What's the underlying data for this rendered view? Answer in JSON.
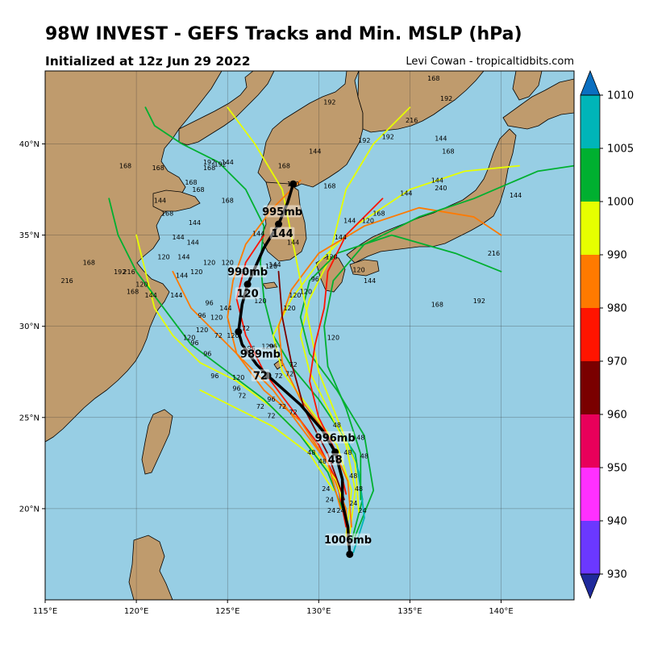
{
  "header": {
    "title": "98W INVEST - GEFS Tracks and Min. MSLP (hPa)",
    "subtitle": "Initialized at 12z Jun 29 2022",
    "credit": "Levi Cowan - tropicaltidbits.com"
  },
  "map": {
    "lon_range": [
      115,
      144
    ],
    "lat_range": [
      15,
      44
    ],
    "lon_ticks": [
      "115°E",
      "120°E",
      "125°E",
      "130°E",
      "135°E",
      "140°E"
    ],
    "lat_ticks": [
      "20°N",
      "25°N",
      "30°N",
      "35°N",
      "40°N"
    ],
    "ocean_color": "#97cee4",
    "land_color": "#bf9b6d"
  },
  "colorbar": {
    "ticks": [
      "930",
      "940",
      "950",
      "960",
      "970",
      "980",
      "990",
      "1000",
      "1005",
      "1010"
    ],
    "colors": [
      "#1f2a9c",
      "#6b38ff",
      "#ff30ff",
      "#e8005a",
      "#7a0000",
      "#ff1400",
      "#ff7a00",
      "#e6ff00",
      "#00b030",
      "#00b5b8",
      "#0a6fc0"
    ]
  },
  "mean_track": {
    "points": [
      {
        "lon": 131.7,
        "lat": 17.5
      },
      {
        "lon": 131.6,
        "lat": 19.0
      },
      {
        "lon": 131.3,
        "lat": 20.3
      },
      {
        "lon": 131.3,
        "lat": 21.6
      },
      {
        "lon": 130.9,
        "lat": 23.1
      },
      {
        "lon": 130.2,
        "lat": 24.3
      },
      {
        "lon": 129.0,
        "lat": 25.7
      },
      {
        "lon": 127.2,
        "lat": 27.3
      },
      {
        "lon": 126.6,
        "lat": 27.9
      },
      {
        "lon": 125.8,
        "lat": 29.0
      },
      {
        "lon": 125.6,
        "lat": 29.7
      },
      {
        "lon": 125.8,
        "lat": 31.2
      },
      {
        "lon": 126.1,
        "lat": 32.3
      },
      {
        "lon": 127.0,
        "lat": 34.3
      },
      {
        "lon": 127.8,
        "lat": 35.6
      },
      {
        "lon": 128.3,
        "lat": 36.8
      },
      {
        "lon": 128.6,
        "lat": 37.8
      }
    ],
    "labels": [
      {
        "text": "1006mb",
        "lon": 131.6,
        "lat": 18.2
      },
      {
        "text": "996mb",
        "lon": 130.9,
        "lat": 23.8
      },
      {
        "text": "48",
        "lon": 130.9,
        "lat": 22.6
      },
      {
        "text": "989mb",
        "lon": 126.8,
        "lat": 28.4
      },
      {
        "text": "72",
        "lon": 126.8,
        "lat": 27.2
      },
      {
        "text": "990mb",
        "lon": 126.1,
        "lat": 32.9
      },
      {
        "text": "120",
        "lon": 126.1,
        "lat": 31.7
      },
      {
        "text": "995mb",
        "lon": 128.0,
        "lat": 36.2
      },
      {
        "text": "144",
        "lon": 128.0,
        "lat": 35.0
      }
    ]
  },
  "ensemble_tracks": [
    {
      "color": "#00b030",
      "points": [
        [
          131.8,
          18.2
        ],
        [
          132.4,
          20.5
        ],
        [
          132.0,
          23.0
        ],
        [
          131.0,
          24.5
        ],
        [
          130.0,
          26.0
        ],
        [
          128.5,
          27.8
        ],
        [
          127.5,
          29.5
        ],
        [
          127.0,
          31.5
        ],
        [
          126.8,
          33.5
        ],
        [
          127.0,
          35.5
        ],
        [
          126.0,
          37.5
        ],
        [
          124.5,
          39.0
        ],
        [
          122.5,
          40.0
        ],
        [
          121.0,
          41.0
        ],
        [
          120.5,
          42.0
        ]
      ]
    },
    {
      "color": "#e6ff00",
      "points": [
        [
          131.5,
          18.5
        ],
        [
          131.8,
          21.0
        ],
        [
          131.0,
          23.5
        ],
        [
          129.5,
          25.5
        ],
        [
          128.0,
          27.5
        ],
        [
          127.5,
          29.5
        ],
        [
          128.5,
          31.5
        ],
        [
          130.0,
          33.5
        ],
        [
          132.0,
          35.5
        ],
        [
          135.0,
          37.5
        ],
        [
          138.0,
          38.5
        ],
        [
          141.0,
          38.8
        ]
      ]
    },
    {
      "color": "#ff7a00",
      "points": [
        [
          131.6,
          18.0
        ],
        [
          131.5,
          20.0
        ],
        [
          130.5,
          22.5
        ],
        [
          129.0,
          24.5
        ],
        [
          127.5,
          26.5
        ],
        [
          126.0,
          28.0
        ],
        [
          124.5,
          29.5
        ],
        [
          123.0,
          31.0
        ],
        [
          122.0,
          33.0
        ]
      ]
    },
    {
      "color": "#e6ff00",
      "points": [
        [
          131.7,
          18.6
        ],
        [
          132.0,
          21.0
        ],
        [
          131.5,
          23.5
        ],
        [
          130.5,
          25.5
        ],
        [
          129.5,
          27.5
        ],
        [
          129.0,
          29.5
        ],
        [
          129.5,
          31.5
        ],
        [
          130.5,
          33.5
        ],
        [
          131.0,
          35.5
        ],
        [
          131.5,
          37.5
        ],
        [
          133.0,
          40.0
        ],
        [
          135.0,
          42.0
        ]
      ]
    },
    {
      "color": "#00b030",
      "points": [
        [
          132.0,
          18.5
        ],
        [
          133.0,
          21.0
        ],
        [
          132.5,
          24.0
        ],
        [
          131.0,
          26.5
        ],
        [
          129.5,
          28.5
        ],
        [
          129.0,
          30.5
        ],
        [
          129.5,
          32.5
        ],
        [
          131.0,
          34.0
        ],
        [
          134.0,
          35.0
        ],
        [
          137.5,
          34.0
        ],
        [
          140.0,
          33.0
        ]
      ]
    },
    {
      "color": "#ff1400",
      "points": [
        [
          131.5,
          19.0
        ],
        [
          131.0,
          21.5
        ],
        [
          130.0,
          23.5
        ],
        [
          128.5,
          25.5
        ],
        [
          127.0,
          27.5
        ],
        [
          126.0,
          29.5
        ],
        [
          125.5,
          31.5
        ],
        [
          126.0,
          33.5
        ],
        [
          127.0,
          35.0
        ]
      ]
    },
    {
      "color": "#e6ff00",
      "points": [
        [
          131.6,
          19.2
        ],
        [
          131.0,
          21.5
        ],
        [
          129.5,
          23.5
        ],
        [
          127.5,
          25.5
        ],
        [
          125.5,
          27.0
        ],
        [
          123.5,
          28.0
        ],
        [
          122.0,
          29.5
        ],
        [
          121.0,
          31.0
        ],
        [
          120.5,
          33.0
        ],
        [
          120.0,
          35.0
        ]
      ]
    },
    {
      "color": "#ff7a00",
      "points": [
        [
          131.8,
          19.0
        ],
        [
          131.6,
          21.5
        ],
        [
          130.5,
          24.0
        ],
        [
          129.0,
          26.0
        ],
        [
          128.0,
          28.0
        ],
        [
          127.8,
          30.0
        ],
        [
          128.5,
          32.0
        ],
        [
          130.0,
          34.0
        ],
        [
          132.5,
          35.5
        ],
        [
          135.5,
          36.5
        ],
        [
          138.5,
          36.0
        ],
        [
          140.0,
          35.0
        ]
      ]
    },
    {
      "color": "#00b5b8",
      "points": [
        [
          131.9,
          17.6
        ],
        [
          132.5,
          19.5
        ],
        [
          132.2,
          22.0
        ],
        [
          131.5,
          24.0
        ]
      ]
    },
    {
      "color": "#00b030",
      "points": [
        [
          131.5,
          19.5
        ],
        [
          130.5,
          22.0
        ],
        [
          129.0,
          24.0
        ],
        [
          127.0,
          26.0
        ],
        [
          125.0,
          27.5
        ],
        [
          123.0,
          29.0
        ],
        [
          121.5,
          31.0
        ],
        [
          120.0,
          33.0
        ],
        [
          119.0,
          35.0
        ],
        [
          118.5,
          37.0
        ]
      ]
    },
    {
      "color": "#7a0000",
      "points": [
        [
          131.4,
          20.5
        ],
        [
          130.5,
          23.0
        ],
        [
          129.2,
          25.5
        ],
        [
          128.5,
          28.0
        ],
        [
          128.0,
          30.5
        ],
        [
          127.8,
          33.0
        ]
      ]
    },
    {
      "color": "#e6ff00",
      "points": [
        [
          132.2,
          19.8
        ],
        [
          132.0,
          22.5
        ],
        [
          131.0,
          25.0
        ],
        [
          130.0,
          27.5
        ],
        [
          129.5,
          30.0
        ],
        [
          129.0,
          32.5
        ],
        [
          128.5,
          35.0
        ],
        [
          128.0,
          37.5
        ],
        [
          126.5,
          40.0
        ],
        [
          125.0,
          42.0
        ]
      ]
    },
    {
      "color": "#ff7a00",
      "points": [
        [
          131.2,
          20.0
        ],
        [
          130.5,
          22.5
        ],
        [
          129.0,
          24.8
        ],
        [
          127.0,
          26.5
        ],
        [
          125.5,
          28.5
        ],
        [
          125.0,
          30.5
        ],
        [
          125.3,
          32.5
        ],
        [
          126.0,
          34.5
        ],
        [
          127.5,
          36.5
        ],
        [
          129.0,
          38.0
        ]
      ]
    },
    {
      "color": "#00b030",
      "points": [
        [
          132.3,
          20.5
        ],
        [
          132.3,
          23.0
        ],
        [
          131.5,
          25.5
        ],
        [
          130.5,
          27.8
        ],
        [
          130.3,
          30.0
        ],
        [
          130.8,
          32.5
        ],
        [
          132.5,
          34.5
        ],
        [
          135.5,
          36.0
        ],
        [
          138.5,
          37.0
        ],
        [
          142.0,
          38.5
        ],
        [
          144.0,
          38.8
        ]
      ]
    },
    {
      "color": "#ff1400",
      "points": [
        [
          131.5,
          20.8
        ],
        [
          131.0,
          23.0
        ],
        [
          130.0,
          25.0
        ],
        [
          129.5,
          27.0
        ],
        [
          129.8,
          29.0
        ],
        [
          130.3,
          31.0
        ],
        [
          130.5,
          33.0
        ],
        [
          131.5,
          35.0
        ],
        [
          133.5,
          37.0
        ]
      ]
    },
    {
      "color": "#e6ff00",
      "points": [
        [
          130.8,
          21.0
        ],
        [
          129.5,
          23.0
        ],
        [
          127.5,
          24.5
        ],
        [
          125.5,
          25.5
        ],
        [
          123.5,
          26.5
        ]
      ]
    }
  ],
  "track_labels": [
    {
      "text": "24",
      "lon": 130.4,
      "lat": 21.1
    },
    {
      "text": "24",
      "lon": 130.6,
      "lat": 20.5
    },
    {
      "text": "24",
      "lon": 130.7,
      "lat": 19.9
    },
    {
      "text": "24",
      "lon": 131.2,
      "lat": 19.9
    },
    {
      "text": "24",
      "lon": 131.9,
      "lat": 20.3
    },
    {
      "text": "24",
      "lon": 132.4,
      "lat": 19.9
    },
    {
      "text": "48",
      "lon": 129.6,
      "lat": 23.1
    },
    {
      "text": "48",
      "lon": 130.2,
      "lat": 22.6
    },
    {
      "text": "48",
      "lon": 131.0,
      "lat": 24.6
    },
    {
      "text": "48",
      "lon": 131.6,
      "lat": 23.1
    },
    {
      "text": "48",
      "lon": 132.3,
      "lat": 23.9
    },
    {
      "text": "48",
      "lon": 132.5,
      "lat": 22.9
    },
    {
      "text": "48",
      "lon": 131.9,
      "lat": 21.8
    },
    {
      "text": "48",
      "lon": 132.2,
      "lat": 21.1
    },
    {
      "text": "72",
      "lon": 126.0,
      "lat": 29.9
    },
    {
      "text": "72",
      "lon": 126.8,
      "lat": 25.6
    },
    {
      "text": "72",
      "lon": 127.4,
      "lat": 25.1
    },
    {
      "text": "72",
      "lon": 128.0,
      "lat": 25.6
    },
    {
      "text": "72",
      "lon": 128.6,
      "lat": 25.3
    },
    {
      "text": "72",
      "lon": 128.4,
      "lat": 27.4
    },
    {
      "text": "72",
      "lon": 128.6,
      "lat": 27.9
    },
    {
      "text": "72",
      "lon": 127.8,
      "lat": 27.3
    },
    {
      "text": "72",
      "lon": 125.8,
      "lat": 26.2
    },
    {
      "text": "72",
      "lon": 124.5,
      "lat": 29.5
    },
    {
      "text": "96",
      "lon": 124.0,
      "lat": 31.3
    },
    {
      "text": "96",
      "lon": 123.6,
      "lat": 30.6
    },
    {
      "text": "96",
      "lon": 123.2,
      "lat": 29.1
    },
    {
      "text": "96",
      "lon": 123.9,
      "lat": 28.5
    },
    {
      "text": "96",
      "lon": 124.3,
      "lat": 27.3
    },
    {
      "text": "96",
      "lon": 125.5,
      "lat": 26.6
    },
    {
      "text": "96",
      "lon": 126.3,
      "lat": 28.8
    },
    {
      "text": "96",
      "lon": 127.4,
      "lat": 26.0
    },
    {
      "text": "96",
      "lon": 127.5,
      "lat": 28.9
    },
    {
      "text": "96",
      "lon": 125.9,
      "lat": 33.0
    },
    {
      "text": "96",
      "lon": 129.8,
      "lat": 32.6
    },
    {
      "text": "120",
      "lon": 122.9,
      "lat": 29.4
    },
    {
      "text": "120",
      "lon": 123.6,
      "lat": 29.8
    },
    {
      "text": "120",
      "lon": 124.4,
      "lat": 30.5
    },
    {
      "text": "120",
      "lon": 125.3,
      "lat": 29.5
    },
    {
      "text": "120",
      "lon": 125.6,
      "lat": 27.2
    },
    {
      "text": "120",
      "lon": 127.2,
      "lat": 28.9
    },
    {
      "text": "120",
      "lon": 128.4,
      "lat": 31.0
    },
    {
      "text": "120",
      "lon": 128.7,
      "lat": 31.7
    },
    {
      "text": "120",
      "lon": 126.8,
      "lat": 31.4
    },
    {
      "text": "120",
      "lon": 127.4,
      "lat": 33.3
    },
    {
      "text": "120",
      "lon": 130.8,
      "lat": 29.4
    },
    {
      "text": "120",
      "lon": 129.3,
      "lat": 31.9
    },
    {
      "text": "120",
      "lon": 120.3,
      "lat": 32.3
    },
    {
      "text": "120",
      "lon": 121.5,
      "lat": 33.8
    },
    {
      "text": "120",
      "lon": 123.3,
      "lat": 33.0
    },
    {
      "text": "120",
      "lon": 124.0,
      "lat": 33.5
    },
    {
      "text": "120",
      "lon": 125.0,
      "lat": 33.5
    },
    {
      "text": "120",
      "lon": 130.7,
      "lat": 33.8
    },
    {
      "text": "120",
      "lon": 132.2,
      "lat": 33.1
    },
    {
      "text": "120",
      "lon": 128.6,
      "lat": 37.8
    },
    {
      "text": "120",
      "lon": 132.7,
      "lat": 35.8
    },
    {
      "text": "144",
      "lon": 120.8,
      "lat": 31.7
    },
    {
      "text": "144",
      "lon": 122.2,
      "lat": 31.7
    },
    {
      "text": "144",
      "lon": 122.5,
      "lat": 32.8
    },
    {
      "text": "144",
      "lon": 122.6,
      "lat": 33.8
    },
    {
      "text": "144",
      "lon": 123.1,
      "lat": 34.6
    },
    {
      "text": "144",
      "lon": 122.3,
      "lat": 34.9
    },
    {
      "text": "144",
      "lon": 123.2,
      "lat": 35.7
    },
    {
      "text": "144",
      "lon": 121.3,
      "lat": 36.9
    },
    {
      "text": "144",
      "lon": 124.9,
      "lat": 31.0
    },
    {
      "text": "144",
      "lon": 126.7,
      "lat": 35.1
    },
    {
      "text": "144",
      "lon": 127.6,
      "lat": 33.4
    },
    {
      "text": "144",
      "lon": 128.6,
      "lat": 34.6
    },
    {
      "text": "144",
      "lon": 131.2,
      "lat": 34.9
    },
    {
      "text": "144",
      "lon": 131.7,
      "lat": 35.8
    },
    {
      "text": "144",
      "lon": 132.8,
      "lat": 32.5
    },
    {
      "text": "144",
      "lon": 129.8,
      "lat": 39.6
    },
    {
      "text": "144",
      "lon": 125.0,
      "lat": 39.0
    },
    {
      "text": "144",
      "lon": 134.8,
      "lat": 37.3
    },
    {
      "text": "144",
      "lon": 136.5,
      "lat": 38.0
    },
    {
      "text": "144",
      "lon": 140.8,
      "lat": 37.2
    },
    {
      "text": "144",
      "lon": 136.7,
      "lat": 40.3
    },
    {
      "text": "168",
      "lon": 119.4,
      "lat": 38.8
    },
    {
      "text": "168",
      "lon": 121.2,
      "lat": 38.7
    },
    {
      "text": "168",
      "lon": 121.7,
      "lat": 36.2
    },
    {
      "text": "168",
      "lon": 123.0,
      "lat": 37.9
    },
    {
      "text": "168",
      "lon": 123.4,
      "lat": 37.5
    },
    {
      "text": "168",
      "lon": 124.0,
      "lat": 38.7
    },
    {
      "text": "168",
      "lon": 125.0,
      "lat": 36.9
    },
    {
      "text": "168",
      "lon": 128.1,
      "lat": 38.8
    },
    {
      "text": "168",
      "lon": 130.6,
      "lat": 37.7
    },
    {
      "text": "168",
      "lon": 117.4,
      "lat": 33.5
    },
    {
      "text": "168",
      "lon": 119.8,
      "lat": 31.9
    },
    {
      "text": "168",
      "lon": 133.3,
      "lat": 36.2
    },
    {
      "text": "168",
      "lon": 136.3,
      "lat": 43.6
    },
    {
      "text": "168",
      "lon": 136.5,
      "lat": 31.2
    },
    {
      "text": "168",
      "lon": 137.1,
      "lat": 39.6
    },
    {
      "text": "192",
      "lon": 124.6,
      "lat": 38.9
    },
    {
      "text": "192",
      "lon": 124.0,
      "lat": 39.0
    },
    {
      "text": "192",
      "lon": 130.6,
      "lat": 42.3
    },
    {
      "text": "192",
      "lon": 132.5,
      "lat": 40.2
    },
    {
      "text": "192",
      "lon": 133.8,
      "lat": 40.4
    },
    {
      "text": "192",
      "lon": 137.0,
      "lat": 42.5
    },
    {
      "text": "192",
      "lon": 138.8,
      "lat": 31.4
    },
    {
      "text": "192",
      "lon": 119.1,
      "lat": 33.0
    },
    {
      "text": "216",
      "lon": 116.2,
      "lat": 32.5
    },
    {
      "text": "216",
      "lon": 119.6,
      "lat": 33.0
    },
    {
      "text": "216",
      "lon": 135.1,
      "lat": 41.3
    },
    {
      "text": "216",
      "lon": 139.6,
      "lat": 34.0
    },
    {
      "text": "240",
      "lon": 136.7,
      "lat": 37.6
    }
  ]
}
